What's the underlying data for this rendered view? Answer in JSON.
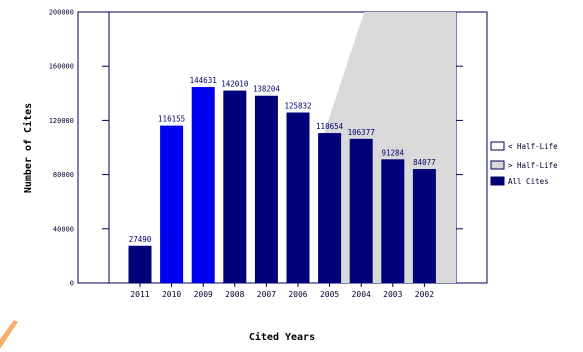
{
  "chart_data": {
    "type": "bar",
    "title": "",
    "xlabel": "Cited Years",
    "ylabel": "Number of Cites",
    "ylim": [
      0,
      200000
    ],
    "yticks": [
      0,
      40000,
      80000,
      120000,
      160000,
      200000
    ],
    "categories": [
      "2011",
      "2010",
      "2009",
      "2008",
      "2007",
      "2006",
      "2005",
      "2004",
      "2003",
      "2002"
    ],
    "values": [
      27490,
      116155,
      144631,
      142010,
      138204,
      125832,
      110654,
      106377,
      91284,
      84077
    ],
    "bar_colors": [
      "#00007a",
      "#0000ee",
      "#0000ee",
      "#00007a",
      "#00007a",
      "#00007a",
      "#00007a",
      "#00007a",
      "#00007a",
      "#00007a"
    ],
    "half_life_start_year": "2005",
    "legend": [
      {
        "label": "< Half-Life",
        "color": "#ffffff"
      },
      {
        "label": "> Half-Life",
        "color": "#d9d9d9"
      },
      {
        "label": "All Cites",
        "color": "#00007a"
      }
    ],
    "legend_position": "right",
    "grid": false
  },
  "colors": {
    "plot_frame": "#00005a",
    "shaded_region": "#d9d9d9",
    "bar_dark": "#00007a",
    "bar_bright": "#0000ee",
    "decorative_accent": "#f7b06a"
  }
}
